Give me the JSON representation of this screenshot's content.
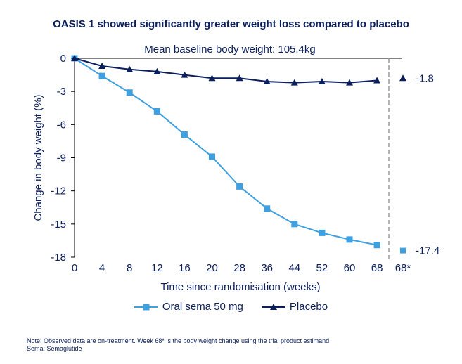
{
  "title": "OASIS 1 showed significantly greater weight loss compared to placebo",
  "chart_data": {
    "type": "line",
    "title": "OASIS 1 showed significantly greater weight loss compared to placebo",
    "annotation": "Mean baseline body weight: 105.4kg",
    "xlabel": "Time since randomisation (weeks)",
    "ylabel": "Change in body weight (%)",
    "x": [
      0,
      4,
      8,
      12,
      16,
      20,
      28,
      36,
      44,
      52,
      60,
      68
    ],
    "x_extra_tick": "68*",
    "y_ticks": [
      "0",
      "-3",
      "-6",
      "-9",
      "-12",
      "-15",
      "-18"
    ],
    "ylim": [
      -18,
      0
    ],
    "grid": false,
    "legend_position": "bottom",
    "series": [
      {
        "name": "Oral sema 50 mg",
        "marker": "square",
        "color": "#3fa0e0",
        "values": [
          0,
          -1.6,
          -3.1,
          -4.8,
          -6.9,
          -8.9,
          -11.6,
          -13.6,
          -15.0,
          -15.8,
          -16.4,
          -16.9
        ],
        "estimand_value": -17.4,
        "estimand_label": "-17.4"
      },
      {
        "name": "Placebo",
        "marker": "triangle",
        "color": "#0b1f5c",
        "values": [
          0,
          -0.7,
          -1.0,
          -1.2,
          -1.5,
          -1.8,
          -1.8,
          -2.1,
          -2.2,
          -2.1,
          -2.2,
          -2.0
        ],
        "estimand_value": -1.8,
        "estimand_label": "-1.8"
      }
    ]
  },
  "footnote": {
    "line1": "Note: Observed data are on-treatment. Week 68* is the body weight change using the trial product estimand",
    "line2": "Sema: Semaglutide"
  }
}
